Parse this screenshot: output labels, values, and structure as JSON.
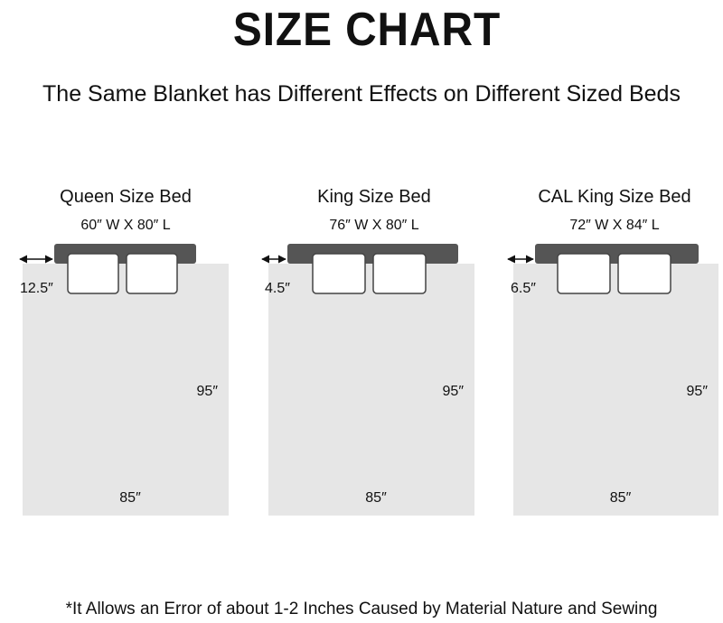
{
  "header": {
    "title": "SIZE CHART",
    "subtitle": "The Same Blanket has Different Effects on Different Sized Beds"
  },
  "beds": [
    {
      "name": "Queen Size Bed",
      "dimensions": "60″ W X 80″ L",
      "overhang": "12.5″",
      "length": "95″",
      "width": "85″"
    },
    {
      "name": "King Size Bed",
      "dimensions": "76″ W X 80″ L",
      "overhang": "4.5″",
      "length": "95″",
      "width": "85″"
    },
    {
      "name": "CAL King Size Bed",
      "dimensions": "72″ W X 84″ L",
      "overhang": "6.5″",
      "length": "95″",
      "width": "85″"
    }
  ],
  "footnote": "*It Allows an Error of about 1-2 Inches Caused by Material Nature and Sewing"
}
